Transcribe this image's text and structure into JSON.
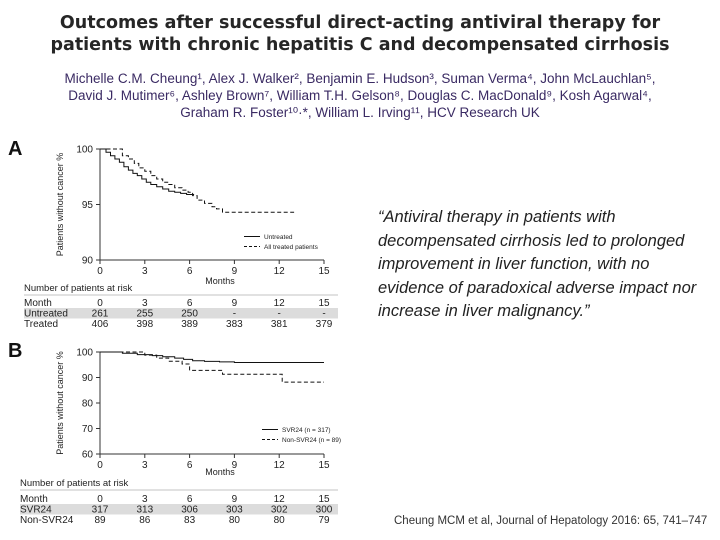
{
  "title": {
    "line1": "Outcomes after successful direct-acting antiviral therapy for",
    "line2": "patients with chronic hepatitis C and decompensated cirrhosis"
  },
  "authors": {
    "line1": "Michelle C.M. Cheung¹, Alex J. Walker², Benjamin E. Hudson³, Suman Verma⁴, John McLauchlan⁵,",
    "line2": "David J. Mutimer⁶, Ashley Brown⁷, William T.H. Gelson⁸, Douglas C. MacDonald⁹, Kosh Agarwal⁴,",
    "line3": "Graham R. Foster¹⁰·*, William L. Irving¹¹, HCV Research UK"
  },
  "quote": "“Antiviral therapy in patients with decompensated cirrhosis led to prolonged improvement in liver function, with no evidence of paradoxical adverse impact nor increase in liver malignancy.”",
  "citation": "Cheung MCM et al, Journal of Hepatology 2016: 65, 741–747",
  "chart_data": [
    {
      "panel": "A",
      "type": "line",
      "subtype": "kaplan-meier",
      "title": "",
      "xlabel": "Months",
      "ylabel": "Patients without cancer %",
      "xlim": [
        0,
        15
      ],
      "ylim": [
        90,
        100
      ],
      "xticks": [
        0,
        3,
        6,
        9,
        12,
        15
      ],
      "yticks": [
        90,
        95,
        100
      ],
      "legend_position": "bottom-right",
      "series": [
        {
          "name": "Untreated",
          "style": "solid",
          "x": [
            0,
            0.4,
            0.7,
            1.0,
            1.3,
            1.6,
            1.9,
            2.2,
            2.5,
            2.8,
            3.1,
            3.4,
            3.8,
            4.2,
            4.6,
            5.0,
            5.4,
            5.8,
            6.3
          ],
          "y": [
            100,
            99.7,
            99.4,
            99.1,
            98.8,
            98.4,
            98.1,
            97.8,
            97.6,
            97.3,
            97.0,
            96.8,
            96.6,
            96.4,
            96.2,
            96.1,
            96.0,
            95.9,
            95.9
          ]
        },
        {
          "name": "All treated patients",
          "style": "dashed",
          "x": [
            0,
            1.5,
            1.9,
            2.3,
            2.6,
            3.0,
            3.4,
            3.8,
            4.2,
            4.6,
            5.0,
            5.5,
            5.9,
            6.2,
            6.5,
            7.0,
            7.5,
            7.8,
            8.2,
            9.5,
            11.0,
            12.5,
            13.0
          ],
          "y": [
            100,
            99.4,
            99.1,
            98.7,
            98.3,
            98.0,
            97.6,
            97.3,
            97.0,
            96.8,
            96.5,
            96.3,
            96.1,
            95.8,
            95.4,
            95.1,
            94.8,
            94.6,
            94.3,
            94.3,
            94.3,
            94.3,
            94.3
          ]
        }
      ],
      "risk_table": {
        "label": "Number of patients at risk",
        "rows": [
          {
            "label": "Month",
            "values": [
              "0",
              "3",
              "6",
              "9",
              "12",
              "15"
            ]
          },
          {
            "label": "Untreated",
            "values": [
              "261",
              "255",
              "250",
              "-",
              "-",
              "-"
            ]
          },
          {
            "label": "Treated",
            "values": [
              "406",
              "398",
              "389",
              "383",
              "381",
              "379"
            ]
          }
        ]
      }
    },
    {
      "panel": "B",
      "type": "line",
      "subtype": "kaplan-meier",
      "title": "",
      "xlabel": "Months",
      "ylabel": "Patients without cancer %",
      "xlim": [
        0,
        15
      ],
      "ylim": [
        60,
        100
      ],
      "xticks": [
        0,
        3,
        6,
        9,
        12,
        15
      ],
      "yticks": [
        60,
        70,
        80,
        90,
        100
      ],
      "legend_position": "bottom-right",
      "series": [
        {
          "name": "SVR24 (n = 317)",
          "style": "solid",
          "x": [
            0,
            1.5,
            2.5,
            3.5,
            4.2,
            5.0,
            5.6,
            6.2,
            7.0,
            8.0,
            9.0,
            10.5,
            12.0,
            13.5,
            15.0
          ],
          "y": [
            100,
            99.5,
            99.0,
            98.6,
            98.1,
            97.6,
            97.1,
            96.6,
            96.3,
            96.1,
            95.9,
            95.9,
            95.9,
            95.9,
            95.9
          ]
        },
        {
          "name": "Non-SVR24 (n = 89)",
          "style": "dashed",
          "x": [
            0,
            3.0,
            3.8,
            4.6,
            5.5,
            6.0,
            7.8,
            8.2,
            12.2,
            15.0
          ],
          "y": [
            100,
            98.8,
            97.6,
            96.4,
            95.3,
            92.8,
            92.8,
            91.3,
            88.2,
            88.2
          ]
        }
      ],
      "risk_table": {
        "label": "Number of patients at risk",
        "rows": [
          {
            "label": "Month",
            "values": [
              "0",
              "3",
              "6",
              "9",
              "12",
              "15"
            ]
          },
          {
            "label": "SVR24",
            "values": [
              "317",
              "313",
              "306",
              "303",
              "302",
              "300"
            ]
          },
          {
            "label": "Non-SVR24",
            "values": [
              "89",
              "86",
              "83",
              "80",
              "80",
              "79"
            ]
          }
        ]
      }
    }
  ]
}
